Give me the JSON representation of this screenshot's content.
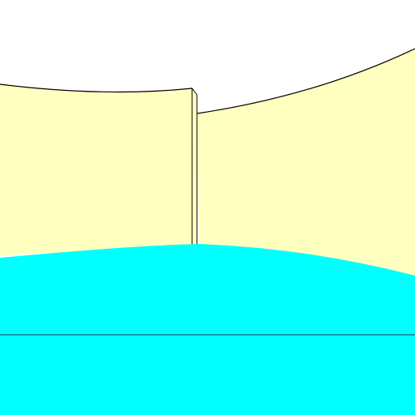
{
  "scene": {
    "type": "first-person-3d-view",
    "colors": {
      "sky": "#ffffff",
      "wall": "#ffffc0",
      "wall_edge": "#000000",
      "floor": "#00ffff",
      "floor_line": "#1a3a5c"
    },
    "elements": [
      "left-wall-panel",
      "wall-side-face",
      "right-wall",
      "floor",
      "floor-horizon-line"
    ]
  }
}
